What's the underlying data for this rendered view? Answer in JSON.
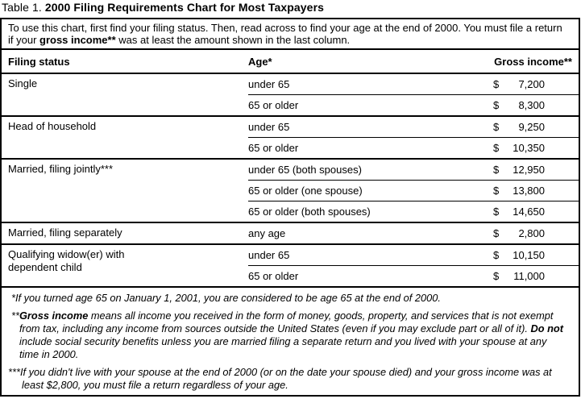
{
  "title": {
    "prefix": "Table 1. ",
    "main": "2000 Filing Requirements Chart for Most Taxpayers"
  },
  "intro": {
    "part1": "To use this chart, first find your filing status. Then, read across to find your age at the end of 2000. You must file a return if your ",
    "bold": "gross income**",
    "part2": " was at least the amount shown in the last column."
  },
  "table": {
    "currency": "$",
    "headers": {
      "status": "Filing status",
      "age": "Age*",
      "gross": "Gross income**"
    },
    "groups": [
      {
        "status": "Single",
        "rows": [
          {
            "age": "under 65",
            "amount": "7,200"
          },
          {
            "age": "65 or older",
            "amount": "8,300"
          }
        ]
      },
      {
        "status": "Head of household",
        "rows": [
          {
            "age": "under 65",
            "amount": "9,250"
          },
          {
            "age": "65 or older",
            "amount": "10,350"
          }
        ]
      },
      {
        "status": "Married, filing jointly***",
        "rows": [
          {
            "age": "under 65 (both spouses)",
            "amount": "12,950"
          },
          {
            "age": "65 or older (one spouse)",
            "amount": "13,800"
          },
          {
            "age": "65 or older (both spouses)",
            "amount": "14,650"
          }
        ]
      },
      {
        "status": "Married, filing separately",
        "rows": [
          {
            "age": "any age",
            "amount": "2,800"
          }
        ]
      },
      {
        "status": "Qualifying widow(er) with\ndependent child",
        "rows": [
          {
            "age": "under 65",
            "amount": "10,150"
          },
          {
            "age": "65 or older",
            "amount": "11,000"
          }
        ]
      }
    ]
  },
  "footnotes": {
    "fn1": {
      "marker": "*",
      "text": "If you turned age 65 on January 1, 2001, you are considered to be age 65 at the end of 2000."
    },
    "fn2": {
      "marker": "**",
      "term": "Gross income",
      "text1": " means all income you received in the form of money, goods, property, and services that is not exempt from tax, including any income from sources outside the United States (even if you may exclude part or all of it). ",
      "bold2": "Do not",
      "text2": " include social security benefits unless you are married filing a separate return and you lived with your spouse at any time in 2000."
    },
    "fn3": {
      "marker": "***",
      "text": "If you didn't live with your spouse at the end of 2000 (or on the date your spouse died) and your gross income was at least $2,800, you must file a return regardless of your age."
    }
  }
}
